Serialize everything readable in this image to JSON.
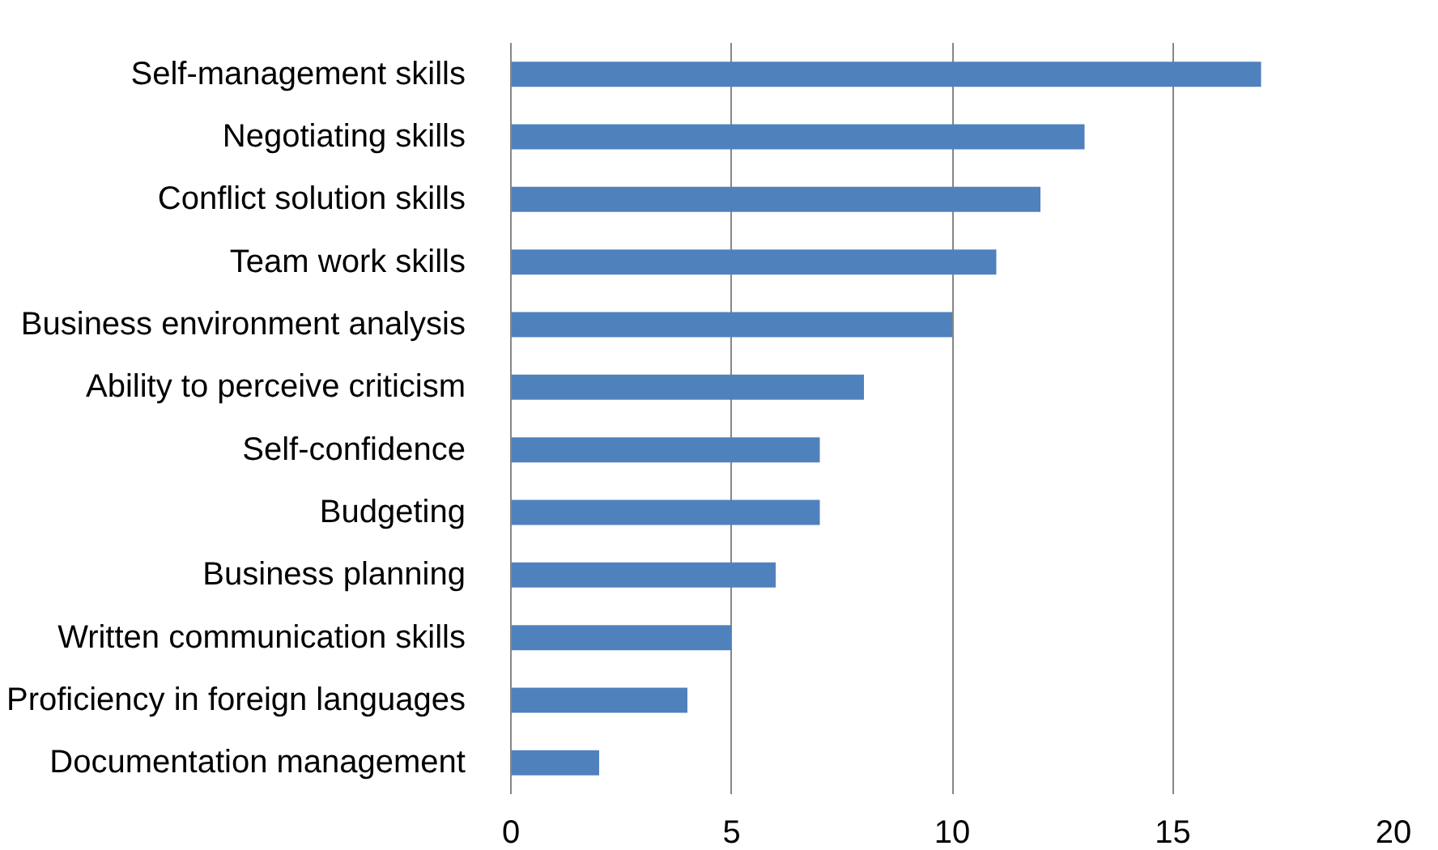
{
  "chart_data": {
    "type": "bar",
    "orientation": "horizontal",
    "categories": [
      "Self-management skills",
      "Negotiating skills",
      "Conflict solution skills",
      "Team work skills",
      "Business environment analysis",
      "Ability to perceive criticism",
      "Self-confidence",
      "Budgeting",
      "Business planning",
      "Written communication skills",
      "Proficiency in foreign languages",
      "Documentation management"
    ],
    "values": [
      17,
      13,
      12,
      11,
      10,
      8,
      7,
      7,
      6,
      5,
      4,
      2
    ],
    "color": "#4f81bd",
    "xlim": [
      0,
      20
    ],
    "xticks": [
      0,
      5,
      10,
      15,
      20
    ],
    "grid": "x"
  }
}
